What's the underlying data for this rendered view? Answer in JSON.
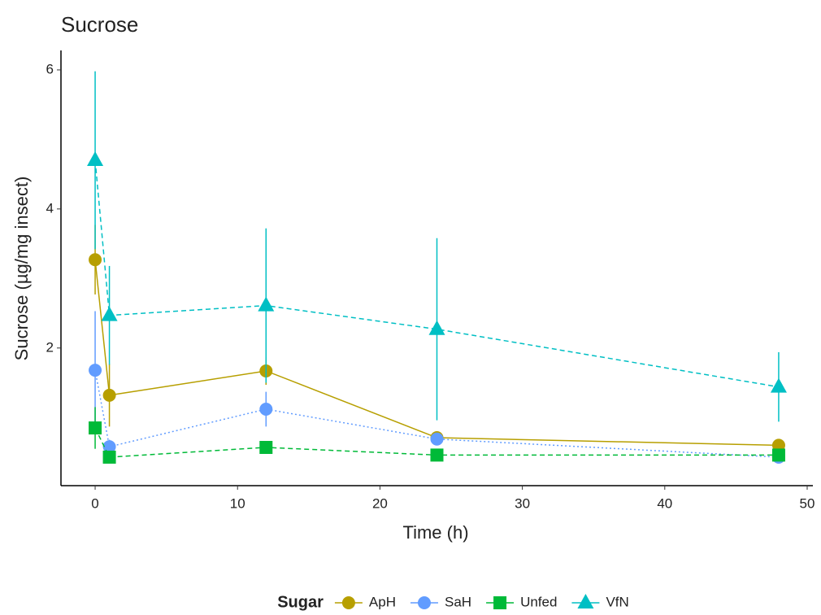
{
  "chart_data": {
    "type": "line",
    "title": "Sucrose",
    "x_label": "Time (h)",
    "y_label": "Sucrose (µg/mg insect)",
    "legend_title": "Sugar",
    "legend_position": "bottom",
    "x": [
      0,
      1,
      12,
      24,
      48
    ],
    "xlim": [
      -2.4,
      50.4
    ],
    "xticks": [
      0,
      10,
      20,
      30,
      40,
      50
    ],
    "ylim": [
      0.02,
      6.28
    ],
    "yticks": [
      2,
      4,
      6
    ],
    "series": [
      {
        "name": "ApH",
        "color": "#b79f00",
        "shape": "circle",
        "dash": "solid",
        "values": [
          3.27,
          1.32,
          1.67,
          0.71,
          0.6
        ],
        "errors": [
          0.5,
          0.45,
          0.2,
          0.05,
          0.05
        ]
      },
      {
        "name": "SaH",
        "color": "#619cff",
        "shape": "circle",
        "dash": "dotted",
        "values": [
          1.68,
          0.58,
          1.12,
          0.69,
          0.43
        ],
        "errors": [
          0.85,
          0.1,
          0.25,
          0.08,
          0.05
        ]
      },
      {
        "name": "Unfed",
        "color": "#00ba38",
        "shape": "square",
        "dash": "dashed",
        "values": [
          0.85,
          0.43,
          0.57,
          0.46,
          0.46
        ],
        "errors": [
          0.3,
          0.05,
          0.05,
          0.04,
          0.04
        ]
      },
      {
        "name": "VfN",
        "color": "#00bfc4",
        "shape": "triangle",
        "dash": "dashed",
        "values": [
          4.7,
          2.47,
          2.61,
          2.27,
          1.44
        ],
        "errors": [
          1.28,
          0.71,
          1.11,
          1.31,
          0.5
        ]
      }
    ]
  }
}
